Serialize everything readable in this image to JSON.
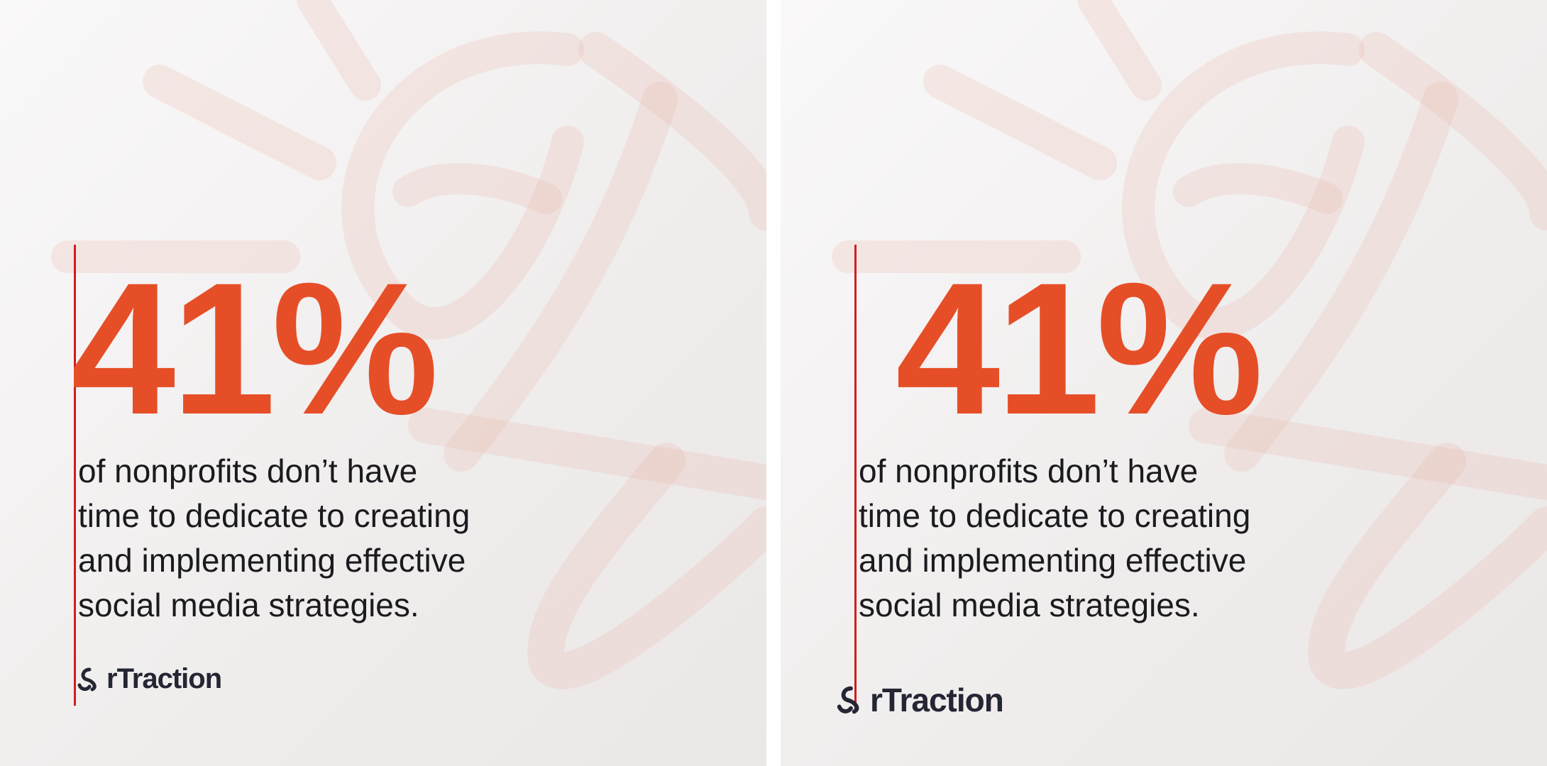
{
  "panels": [
    {
      "stat": "41%",
      "lines": [
        "of nonprofits don’t have",
        "time to dedicate to creating",
        "and implementing effective",
        "social media strategies."
      ],
      "brand": "rTraction"
    },
    {
      "stat": "41%",
      "lines": [
        "of nonprofits don’t have",
        "time to dedicate to creating",
        "and implementing effective",
        "social media strategies."
      ],
      "brand": "rTraction"
    }
  ],
  "colors": {
    "accent": "#e64e27",
    "divider": "#cf1e1e",
    "text": "#1b1b1f",
    "brand": "#242633",
    "decoration": "#e8b0a6"
  },
  "icons": {
    "logo": "rtraction-knot-icon"
  }
}
